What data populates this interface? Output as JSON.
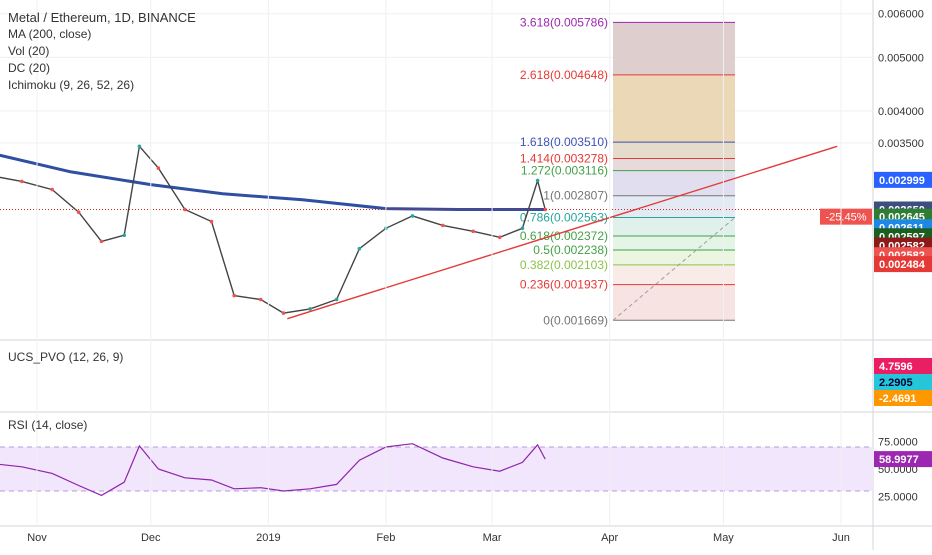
{
  "chart_data": {
    "type": "candlestick",
    "title": "Metal / Ethereum, 1D, BINANCE",
    "indicators": [
      "MA (200, close)",
      "Vol (20)",
      "DC (20)",
      "Ichimoku (9, 26, 52, 26)"
    ],
    "x_ticks": [
      {
        "label": "Nov",
        "date": "2018-11-01"
      },
      {
        "label": "Dec",
        "date": "2018-12-01"
      },
      {
        "label": "2019",
        "date": "2019-01-01"
      },
      {
        "label": "Feb",
        "date": "2019-02-01"
      },
      {
        "label": "Mar",
        "date": "2019-03-01"
      },
      {
        "label": "Apr",
        "date": "2019-04-01"
      },
      {
        "label": "May",
        "date": "2019-05-01"
      },
      {
        "label": "Jun",
        "date": "2019-06-01"
      }
    ],
    "y_axis": {
      "scale": "log",
      "range": [
        0.00155,
        0.0063
      ],
      "ticks": [
        "0.006000",
        "0.005000",
        "0.004000",
        "0.003500"
      ]
    },
    "price_tags": [
      {
        "label": "0.002999",
        "value": 0.002999,
        "color": "#2962ff"
      },
      {
        "label": "0.002650",
        "value": 0.00265,
        "color": "#3d4f7c"
      },
      {
        "label": "0.002645",
        "value": 0.002572,
        "color": "#2e7d32"
      },
      {
        "label": "0.002611",
        "value": 0.00246,
        "color": "#1e88e5"
      },
      {
        "label": "0.002597",
        "value": 0.00237,
        "color": "#1b5e20"
      },
      {
        "label": "0.002582",
        "value": 0.00228,
        "color": "#8b1a1a"
      },
      {
        "label": "0.002582",
        "value": 0.00219,
        "color": "#ef5350"
      },
      {
        "label": "0.002484",
        "value": 0.00211,
        "color": "#e53935"
      }
    ],
    "change_tag": {
      "label": "-25.45%",
      "price": "0.002645",
      "value": 0.002572
    },
    "fibonacci": {
      "levels": [
        {
          "ratio": "3.618",
          "price": "0.005786",
          "value": 0.005786,
          "color": "#9c27b0"
        },
        {
          "ratio": "2.618",
          "price": "0.004648",
          "value": 0.004648,
          "color": "#e53935"
        },
        {
          "ratio": "1.618",
          "price": "0.003510",
          "value": 0.00351,
          "color": "#3f51b5"
        },
        {
          "ratio": "1.414",
          "price": "0.003278",
          "value": 0.003278,
          "color": "#e53935"
        },
        {
          "ratio": "1.272",
          "price": "0.003116",
          "value": 0.003116,
          "color": "#43a047"
        },
        {
          "ratio": "1",
          "price": "0.002807",
          "value": 0.002807,
          "color": "#757575"
        },
        {
          "ratio": "0.786",
          "price": "0.002563",
          "value": 0.002563,
          "color": "#26a69a"
        },
        {
          "ratio": "0.618",
          "price": "0.002372",
          "value": 0.002372,
          "color": "#43a047"
        },
        {
          "ratio": "0.5",
          "price": "0.002238",
          "value": 0.002238,
          "color": "#43a047"
        },
        {
          "ratio": "0.382",
          "price": "0.002103",
          "value": 0.002103,
          "color": "#8bc34a"
        },
        {
          "ratio": "0.236",
          "price": "0.001937",
          "value": 0.001937,
          "color": "#e53935"
        },
        {
          "ratio": "0",
          "price": "0.001669",
          "value": 0.001669,
          "color": "#757575"
        }
      ]
    },
    "ma200": [
      {
        "date": "2018-10-20",
        "value": 0.00335
      },
      {
        "date": "2018-11-10",
        "value": 0.0031
      },
      {
        "date": "2018-12-01",
        "value": 0.00294
      },
      {
        "date": "2018-12-20",
        "value": 0.00283
      },
      {
        "date": "2019-01-10",
        "value": 0.00276
      },
      {
        "date": "2019-02-01",
        "value": 0.00266
      },
      {
        "date": "2019-02-20",
        "value": 0.00265
      },
      {
        "date": "2019-03-10",
        "value": 0.00265
      },
      {
        "date": "2019-03-15",
        "value": 0.00265
      }
    ],
    "close": [
      {
        "date": "2018-10-20",
        "value": 0.00305
      },
      {
        "date": "2018-10-28",
        "value": 0.00298
      },
      {
        "date": "2018-11-05",
        "value": 0.00288
      },
      {
        "date": "2018-11-12",
        "value": 0.00262
      },
      {
        "date": "2018-11-18",
        "value": 0.00232
      },
      {
        "date": "2018-11-24",
        "value": 0.00238
      },
      {
        "date": "2018-11-28",
        "value": 0.00345
      },
      {
        "date": "2018-12-03",
        "value": 0.00315
      },
      {
        "date": "2018-12-10",
        "value": 0.00265
      },
      {
        "date": "2018-12-17",
        "value": 0.00252
      },
      {
        "date": "2018-12-23",
        "value": 0.00185
      },
      {
        "date": "2018-12-30",
        "value": 0.00182
      },
      {
        "date": "2019-01-05",
        "value": 0.00172
      },
      {
        "date": "2019-01-12",
        "value": 0.00175
      },
      {
        "date": "2019-01-19",
        "value": 0.00182
      },
      {
        "date": "2019-01-25",
        "value": 0.00225
      },
      {
        "date": "2019-02-01",
        "value": 0.00245
      },
      {
        "date": "2019-02-08",
        "value": 0.00258
      },
      {
        "date": "2019-02-16",
        "value": 0.00248
      },
      {
        "date": "2019-02-24",
        "value": 0.00242
      },
      {
        "date": "2019-03-03",
        "value": 0.00236
      },
      {
        "date": "2019-03-09",
        "value": 0.00245
      },
      {
        "date": "2019-03-13",
        "value": 0.00299
      },
      {
        "date": "2019-03-15",
        "value": 0.00265
      }
    ],
    "support_line": [
      {
        "date": "2019-01-06",
        "value": 0.00168
      },
      {
        "date": "2019-05-31",
        "value": 0.00345
      }
    ],
    "ucs_pvo": {
      "title": "UCS_PVO (12, 26, 9)",
      "tags": [
        "4.7596",
        "2.2905",
        "-2.4691"
      ]
    },
    "rsi": {
      "title": "RSI (14, close)",
      "range": [
        0,
        100
      ],
      "bands": [
        30,
        70
      ],
      "ticks": [
        "75.0000",
        "50.0000",
        "25.0000"
      ],
      "current_label": "58.9977",
      "values": [
        {
          "date": "2018-10-20",
          "value": 55
        },
        {
          "date": "2018-10-28",
          "value": 52
        },
        {
          "date": "2018-11-05",
          "value": 46
        },
        {
          "date": "2018-11-12",
          "value": 35
        },
        {
          "date": "2018-11-18",
          "value": 26
        },
        {
          "date": "2018-11-24",
          "value": 38
        },
        {
          "date": "2018-11-28",
          "value": 71
        },
        {
          "date": "2018-12-03",
          "value": 50
        },
        {
          "date": "2018-12-10",
          "value": 42
        },
        {
          "date": "2018-12-17",
          "value": 40
        },
        {
          "date": "2018-12-23",
          "value": 32
        },
        {
          "date": "2018-12-30",
          "value": 33
        },
        {
          "date": "2019-01-05",
          "value": 30
        },
        {
          "date": "2019-01-12",
          "value": 32
        },
        {
          "date": "2019-01-19",
          "value": 36
        },
        {
          "date": "2019-01-25",
          "value": 58
        },
        {
          "date": "2019-02-01",
          "value": 70
        },
        {
          "date": "2019-02-08",
          "value": 73
        },
        {
          "date": "2019-02-16",
          "value": 60
        },
        {
          "date": "2019-02-24",
          "value": 52
        },
        {
          "date": "2019-03-03",
          "value": 48
        },
        {
          "date": "2019-03-09",
          "value": 56
        },
        {
          "date": "2019-03-13",
          "value": 72
        },
        {
          "date": "2019-03-15",
          "value": 59
        }
      ]
    }
  }
}
